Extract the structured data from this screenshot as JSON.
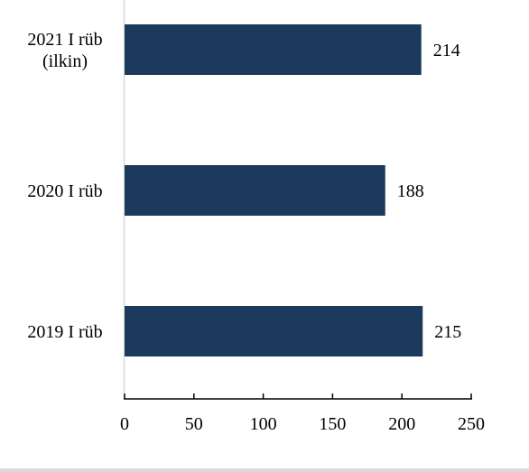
{
  "chart_data": {
    "type": "bar",
    "orientation": "horizontal",
    "categories": [
      [
        "2021 I rüb",
        "(ilkin)"
      ],
      [
        "2020 I rüb"
      ],
      [
        "2019 I rüb"
      ]
    ],
    "values": [
      214,
      188,
      215
    ],
    "value_labels": [
      "214",
      "188",
      "215"
    ],
    "xlim": [
      0,
      250
    ],
    "xticks": [
      "0",
      "50",
      "100",
      "150",
      "200",
      "250"
    ],
    "grid": false,
    "legend": "none",
    "colors": {
      "bar": "#1b3a5c",
      "axis": "#000000",
      "category_axis": "#d9d9d9"
    }
  }
}
